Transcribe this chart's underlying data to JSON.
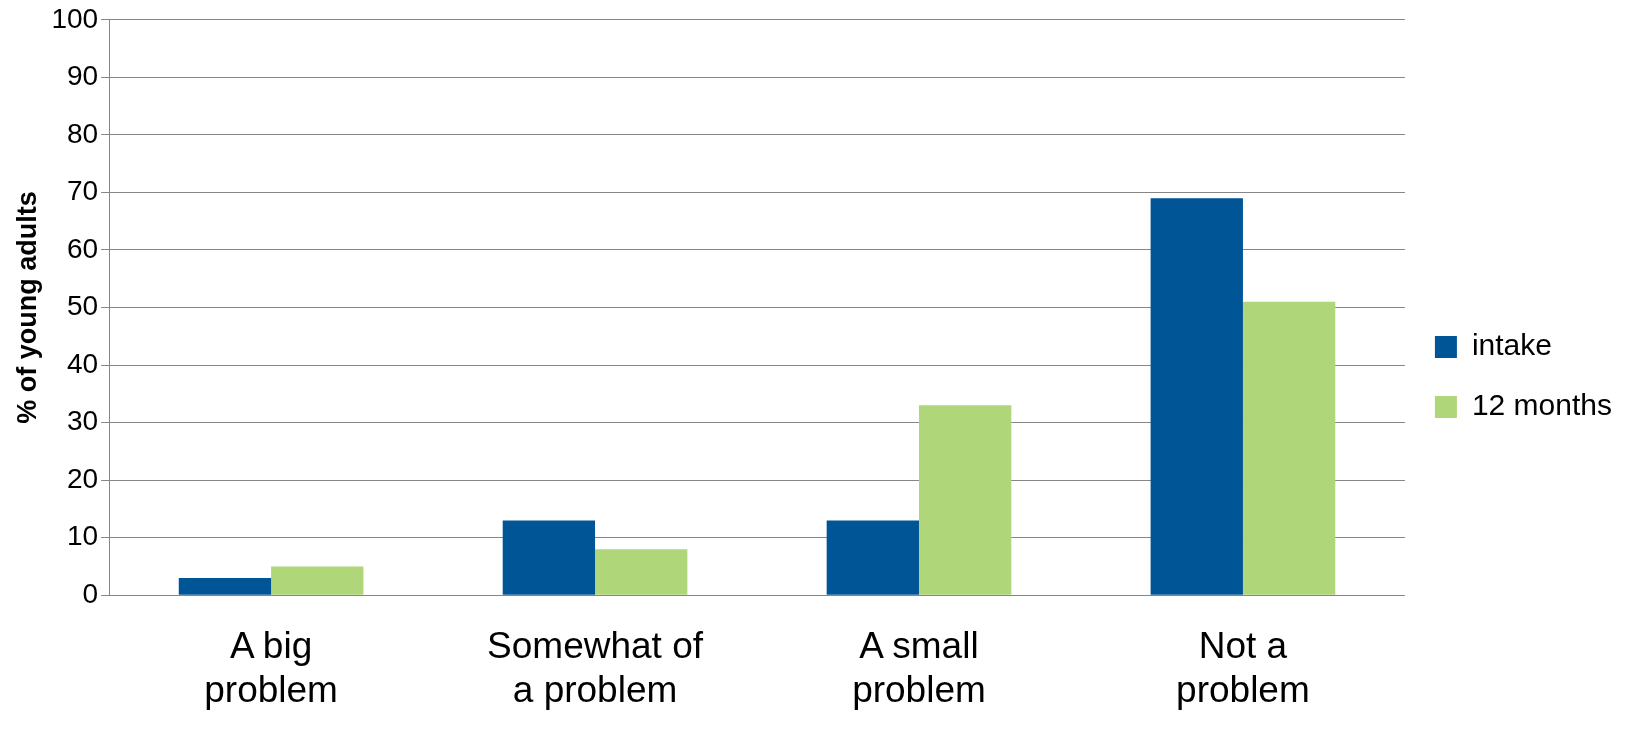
{
  "chart_data": {
    "type": "bar",
    "ylabel": "% of young adults",
    "categories": [
      "A big problem",
      "Somewhat of a problem",
      "A small problem",
      "Not a problem"
    ],
    "series": [
      {
        "name": "intake",
        "color": "#005596",
        "values": [
          3,
          13,
          13,
          69
        ]
      },
      {
        "name": "12 months",
        "color": "#b0d67a",
        "values": [
          5,
          8,
          33,
          51
        ]
      }
    ],
    "ylim": [
      0,
      100
    ],
    "yticks": [
      0,
      10,
      20,
      30,
      40,
      50,
      60,
      70,
      80,
      90,
      100
    ],
    "grid": "y",
    "legend": "right"
  }
}
